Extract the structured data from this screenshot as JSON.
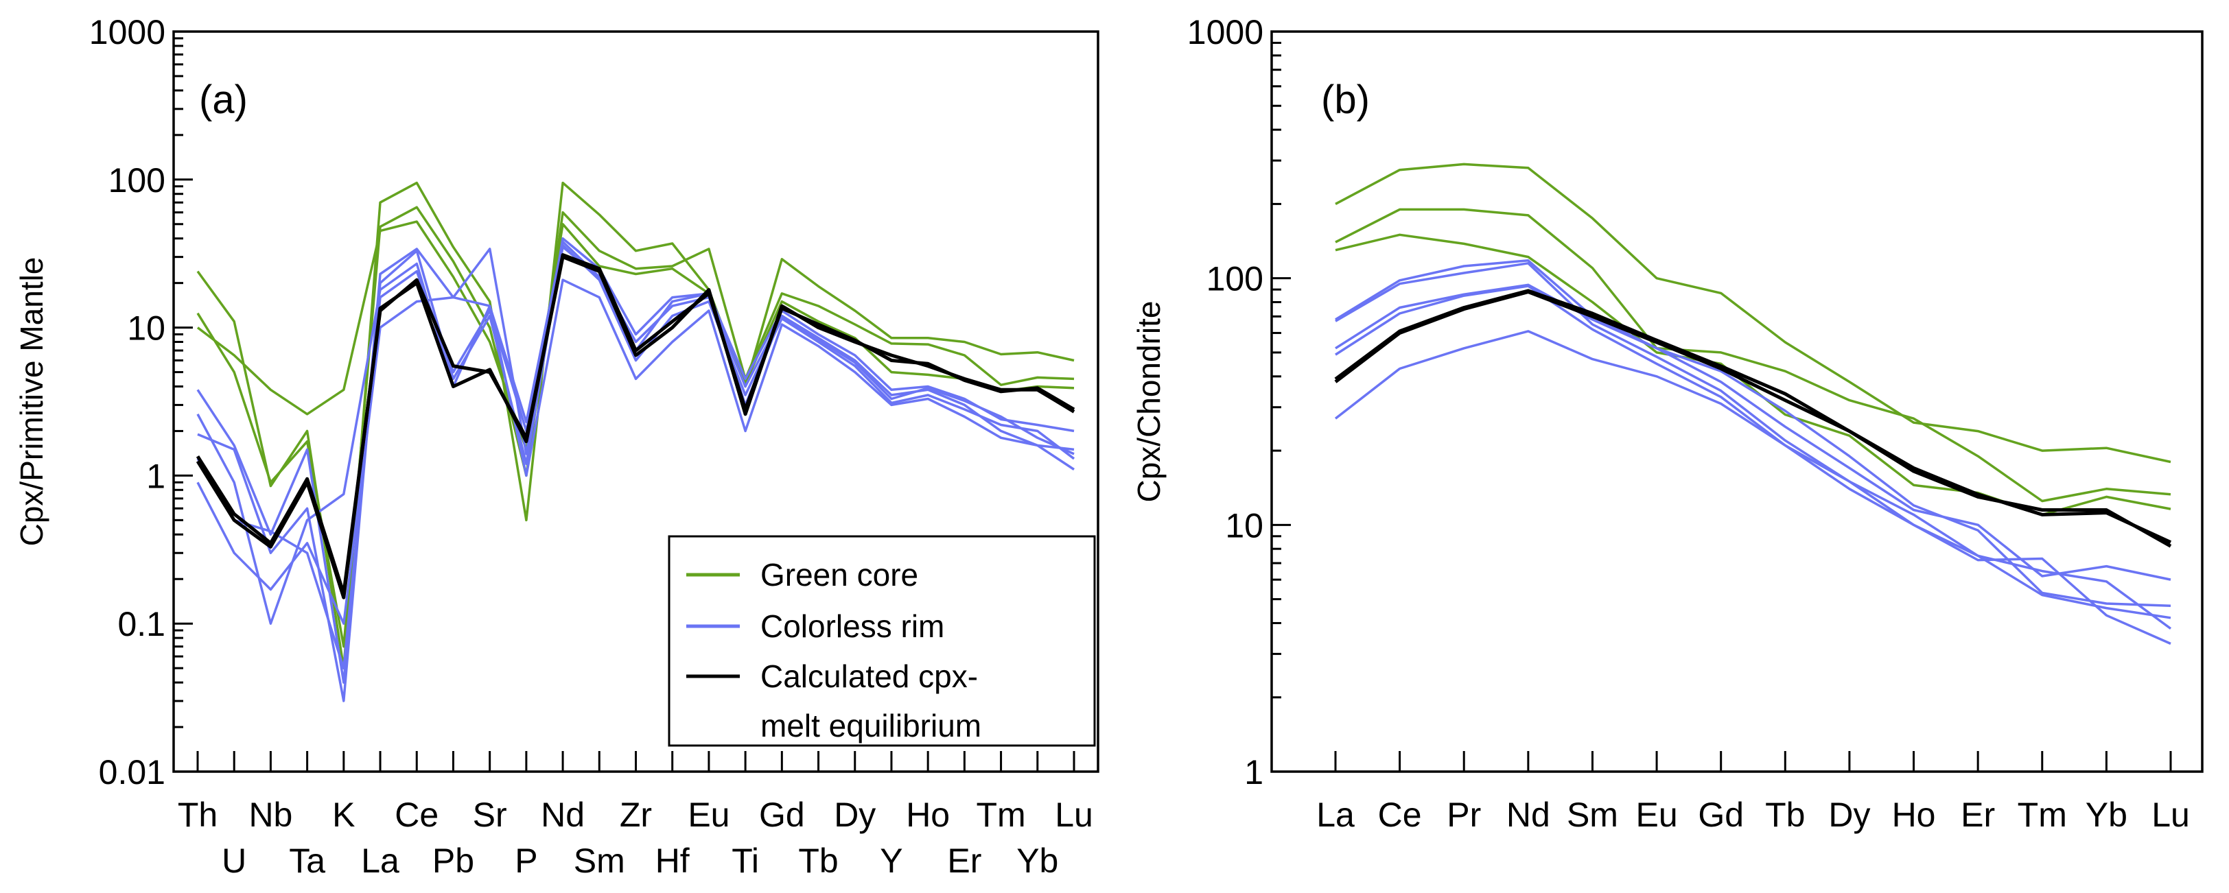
{
  "colors": {
    "green": "#64a31f",
    "blue": "#6a74f4",
    "black": "#000000"
  },
  "legend": {
    "items": [
      {
        "label": "Green core",
        "color_key": "green"
      },
      {
        "label": "Colorless rim",
        "color_key": "blue"
      },
      {
        "label_lines": [
          "Calculated cpx-",
          "melt equilibrium"
        ],
        "color_key": "black"
      }
    ]
  },
  "chart_data": [
    {
      "type": "line",
      "panel_label": "(a)",
      "ylabel": "Cpx/Primitive Mantle",
      "yscale": "log",
      "ylim": [
        0.01,
        1000
      ],
      "yticks": [
        "0.01",
        "0.1",
        "1",
        "10",
        "100",
        "1000"
      ],
      "categories": [
        "Th",
        "U",
        "Nb",
        "Ta",
        "K",
        "La",
        "Ce",
        "Pb",
        "Sr",
        "P",
        "Nd",
        "Sm",
        "Zr",
        "Hf",
        "Eu",
        "Ti",
        "Gd",
        "Tb",
        "Dy",
        "Y",
        "Ho",
        "Er",
        "Tm",
        "Yb",
        "Lu"
      ],
      "series": [
        {
          "name": "Green core",
          "color_key": "green",
          "values": [
            24,
            11,
            0.85,
            2.0,
            0.05,
            70,
            95,
            35,
            15,
            0.5,
            95,
            58,
            33,
            37,
            18,
            4,
            29,
            19,
            13,
            8.5,
            8.5,
            8,
            6.6,
            6.8,
            6
          ]
        },
        {
          "name": "Green core",
          "color_key": "green",
          "values": [
            12.5,
            5,
            0.9,
            1.7,
            0.07,
            48,
            65,
            28,
            10,
            1.0,
            60,
            33,
            25,
            26,
            34,
            4.5,
            17,
            14,
            10.5,
            7.8,
            7.7,
            6.5,
            4.1,
            4.6,
            4.5
          ]
        },
        {
          "name": "Green core",
          "color_key": "green",
          "values": [
            10,
            6.5,
            3.8,
            2.6,
            3.8,
            45,
            52,
            22,
            8,
            1.5,
            50,
            26,
            23,
            25,
            17,
            4.2,
            15,
            11,
            8.5,
            5,
            4.8,
            4.5,
            3.7,
            4.0,
            3.9
          ]
        },
        {
          "name": "Colorless rim",
          "color_key": "blue",
          "values": [
            3.8,
            1.6,
            0.4,
            1.5,
            0.04,
            23,
            34,
            16,
            34,
            1.4,
            40,
            25,
            9,
            16,
            17,
            4.5,
            13,
            9,
            6.5,
            3.8,
            4,
            3.3,
            2.4,
            2.2,
            2.0
          ]
        },
        {
          "name": "Colorless rim",
          "color_key": "blue",
          "values": [
            2.6,
            0.9,
            0.1,
            0.5,
            0.75,
            18,
            27,
            4,
            14,
            2.3,
            38,
            22,
            8,
            14,
            16,
            4,
            12,
            8.5,
            6,
            3.5,
            3.8,
            3.0,
            2.0,
            1.6,
            1.5
          ]
        },
        {
          "name": "Colorless rim",
          "color_key": "blue",
          "values": [
            1.9,
            1.5,
            0.3,
            0.6,
            0.03,
            20,
            33,
            4.5,
            12,
            1.2,
            36,
            21,
            6,
            12,
            15,
            3.5,
            11.5,
            8,
            5.5,
            3.1,
            3.5,
            2.8,
            2.2,
            2.0,
            1.3
          ]
        },
        {
          "name": "Colorless rim",
          "color_key": "blue",
          "values": [
            0.9,
            0.3,
            0.17,
            0.35,
            0.1,
            10,
            15,
            16,
            14,
            1.0,
            21,
            16,
            4.5,
            8,
            13,
            2,
            10.5,
            7.5,
            5,
            3.0,
            3.3,
            2.5,
            1.8,
            1.6,
            1.1
          ]
        },
        {
          "name": "Colorless rim",
          "color_key": "blue",
          "values": [
            1.3,
            0.5,
            0.42,
            0.3,
            0.05,
            16,
            24,
            5,
            13,
            2.0,
            35,
            22,
            7,
            15,
            17,
            3,
            12,
            8.3,
            5.8,
            3.3,
            3.9,
            3.2,
            2.5,
            1.8,
            1.4
          ]
        },
        {
          "name": "Calculated cpx-melt equilibrium",
          "color_key": "black",
          "values": [
            1.35,
            0.55,
            0.35,
            0.95,
            0.16,
            13,
            21,
            5.5,
            5,
            1.8,
            30,
            24,
            6.5,
            10,
            18,
            2.6,
            14,
            10,
            8,
            6.5,
            5.5,
            4.5,
            3.8,
            3.8,
            2.7
          ]
        },
        {
          "name": "Calculated cpx-melt equilibrium",
          "color_key": "black",
          "values": [
            1.25,
            0.5,
            0.33,
            0.9,
            0.15,
            13.5,
            20,
            4,
            5.2,
            1.7,
            31,
            25,
            7,
            11,
            17,
            2.8,
            13.5,
            10.5,
            8.2,
            6,
            5.7,
            4.4,
            3.7,
            3.9,
            2.8
          ]
        }
      ]
    },
    {
      "type": "line",
      "panel_label": "(b)",
      "ylabel": "Cpx/Chondrite",
      "yscale": "log",
      "ylim": [
        1,
        1000
      ],
      "yticks": [
        "1",
        "10",
        "100",
        "1000"
      ],
      "categories": [
        "La",
        "Ce",
        "Pr",
        "Nd",
        "Sm",
        "Eu",
        "Gd",
        "Tb",
        "Dy",
        "Ho",
        "Er",
        "Tm",
        "Yb",
        "Lu"
      ],
      "series": [
        {
          "name": "Green core",
          "color_key": "green",
          "values": [
            200,
            275,
            290,
            280,
            175,
            100,
            87,
            55,
            38,
            26,
            24,
            20,
            20.5,
            18
          ]
        },
        {
          "name": "Green core",
          "color_key": "green",
          "values": [
            140,
            190,
            190,
            180,
            110,
            52,
            50,
            42,
            32,
            27,
            19,
            12.5,
            14,
            13.3
          ]
        },
        {
          "name": "Green core",
          "color_key": "green",
          "values": [
            130,
            150,
            138,
            122,
            80,
            50,
            45,
            28,
            23,
            14.5,
            13.5,
            11,
            13,
            11.6
          ]
        },
        {
          "name": "Colorless rim",
          "color_key": "blue",
          "values": [
            68,
            98,
            112,
            118,
            70,
            52,
            38,
            25,
            17,
            11.5,
            10,
            6.2,
            6.8,
            6.0
          ]
        },
        {
          "name": "Colorless rim",
          "color_key": "blue",
          "values": [
            67,
            95,
            105,
            115,
            65,
            48,
            35,
            22,
            15,
            10,
            7.2,
            7.3,
            4.3,
            3.3
          ]
        },
        {
          "name": "Colorless rim",
          "color_key": "blue",
          "values": [
            52,
            76,
            86,
            94,
            68,
            52,
            42,
            29,
            19,
            12,
            9.5,
            5.3,
            4.8,
            4.7
          ]
        },
        {
          "name": "Colorless rim",
          "color_key": "blue",
          "values": [
            49,
            72,
            85,
            93,
            62,
            45,
            33,
            21,
            15,
            11,
            7.5,
            6.5,
            5.9,
            3.8
          ]
        },
        {
          "name": "Colorless rim",
          "color_key": "blue",
          "values": [
            27,
            43,
            52,
            61,
            47,
            40,
            31,
            21,
            14,
            10,
            7.5,
            5.2,
            4.6,
            4.2
          ]
        },
        {
          "name": "Calculated cpx-melt equilibrium",
          "color_key": "black",
          "values": [
            38,
            60,
            75,
            88,
            70,
            55,
            43,
            32,
            24,
            16.5,
            13,
            11.5,
            11.5,
            8.2
          ]
        },
        {
          "name": "Calculated cpx-melt equilibrium",
          "color_key": "black",
          "values": [
            39,
            61,
            76,
            89,
            72,
            56,
            44,
            34,
            24,
            17,
            13.3,
            11,
            11.2,
            8.5
          ]
        }
      ]
    }
  ]
}
